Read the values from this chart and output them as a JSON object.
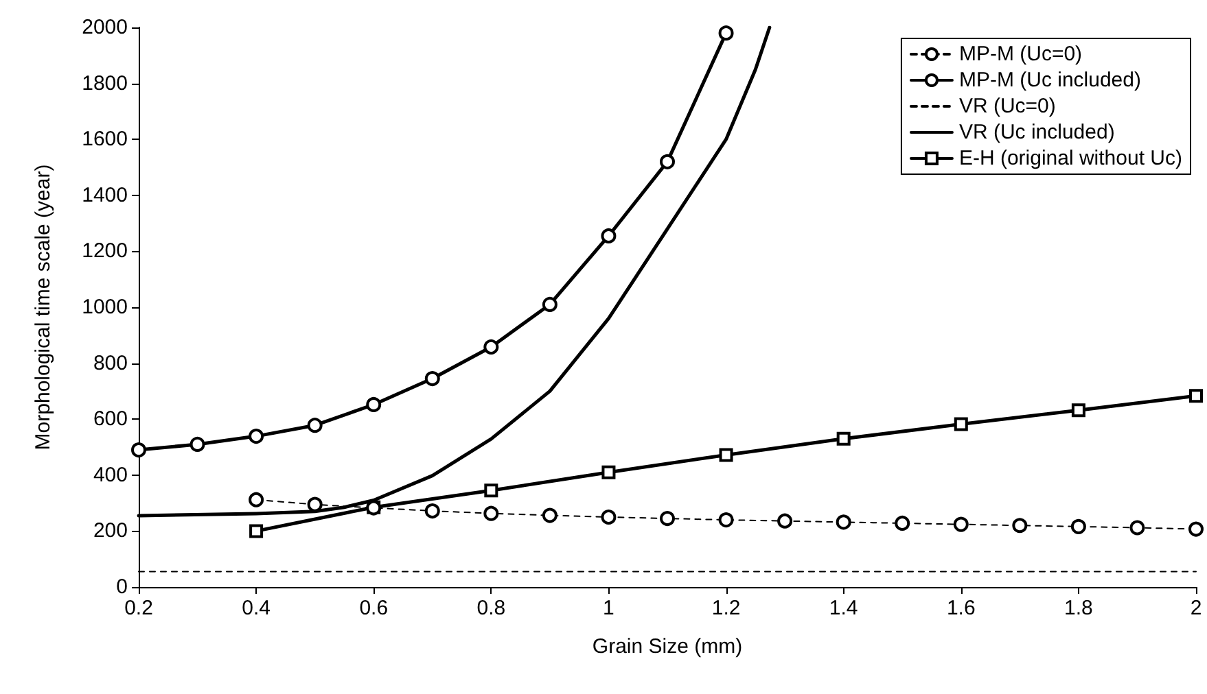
{
  "chart_data": {
    "type": "line",
    "xlabel": "Grain Size (mm)",
    "ylabel": "Morphological time scale (year)",
    "xlim": [
      0.2,
      2
    ],
    "xticks": [
      0.2,
      0.4,
      0.6,
      0.8,
      1,
      1.2,
      1.4,
      1.6,
      1.8,
      2
    ],
    "ylim": [
      0,
      2000
    ],
    "yticks": [
      0,
      200,
      400,
      600,
      800,
      1000,
      1200,
      1400,
      1600,
      1800,
      2000
    ],
    "grid": false,
    "legend": "top right",
    "series": [
      {
        "name": "MP-M (Uc=0)",
        "color": "#000000",
        "line_style": "dashed",
        "marker": "circle",
        "x": [
          0.4,
          0.5,
          0.6,
          0.7,
          0.8,
          0.9,
          1.0,
          1.1,
          1.2,
          1.3,
          1.4,
          1.5,
          1.6,
          1.7,
          1.8,
          1.9,
          2.0
        ],
        "values": [
          312,
          295,
          283,
          272,
          263,
          256,
          250,
          245,
          240,
          236,
          232,
          228,
          224,
          220,
          216,
          212,
          207
        ]
      },
      {
        "name": "MP-M (Uc included)",
        "color": "#000000",
        "line_style": "solid",
        "marker": "circle",
        "x": [
          0.2,
          0.3,
          0.4,
          0.5,
          0.6,
          0.7,
          0.8,
          0.9,
          1.0,
          1.1,
          1.2
        ],
        "values": [
          490,
          510,
          539,
          578,
          652,
          745,
          858,
          1010,
          1255,
          1520,
          1980
        ]
      },
      {
        "name": "VR (Uc=0)",
        "color": "#000000",
        "line_style": "dashed",
        "marker": "none",
        "x": [
          0.2,
          2.0
        ],
        "values": [
          55,
          55
        ]
      },
      {
        "name": "VR (Uc included)",
        "color": "#000000",
        "line_style": "solid",
        "marker": "none",
        "x": [
          0.2,
          0.4,
          0.5,
          0.55,
          0.6,
          0.7,
          0.8,
          0.9,
          1.0,
          1.1,
          1.2,
          1.25,
          1.274
        ],
        "values": [
          255,
          262,
          270,
          285,
          310,
          398,
          529,
          700,
          960,
          1280,
          1600,
          1850,
          2000
        ]
      },
      {
        "name": "E-H (original without Uc)",
        "color": "#000000",
        "line_style": "solid",
        "marker": "square",
        "x": [
          0.4,
          0.6,
          0.8,
          1.0,
          1.2,
          1.4,
          1.6,
          1.8,
          2.0
        ],
        "values": [
          200,
          285,
          345,
          410,
          472,
          530,
          582,
          632,
          683
        ]
      }
    ]
  }
}
